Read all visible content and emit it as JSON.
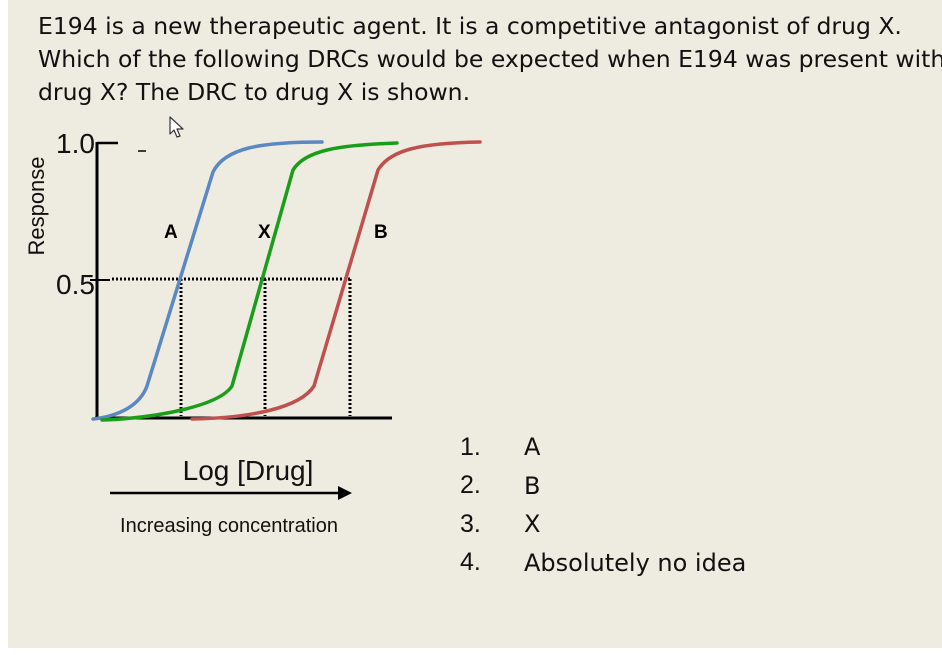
{
  "question": {
    "lines": [
      "E194 is a new therapeutic agent.  It is a competitive antagonist of drug X.",
      "Which of the following DRCs would be expected when E194 was present with",
      "drug X?  The DRC to drug X is shown."
    ]
  },
  "chart_data": {
    "type": "line",
    "title": "",
    "xlabel": "Log [Drug]",
    "x_arrow_caption": "Increasing concentration",
    "ylabel": "Response",
    "y_ticks": [
      "1.0",
      "0.5"
    ],
    "ylim": [
      0,
      1.0
    ],
    "grid": false,
    "series": [
      {
        "name": "A",
        "color": "#5b87c3",
        "ec50_relative": -1,
        "description": "shifted left"
      },
      {
        "name": "X",
        "color": "#1a9e1a",
        "ec50_relative": 0,
        "description": "reference curve"
      },
      {
        "name": "B",
        "color": "#c0504d",
        "ec50_relative": 1,
        "description": "shifted right"
      }
    ],
    "half_max_marker": 0.5
  },
  "answers": [
    {
      "number": "1.",
      "text": "A"
    },
    {
      "number": "2.",
      "text": "B"
    },
    {
      "number": "3.",
      "text": "X"
    },
    {
      "number": "4.",
      "text": "Absolutely no idea"
    }
  ],
  "colors": {
    "background": "#eeebe1",
    "axis": "#000000"
  },
  "icons": {
    "cursor": "mouse-pointer-icon"
  }
}
